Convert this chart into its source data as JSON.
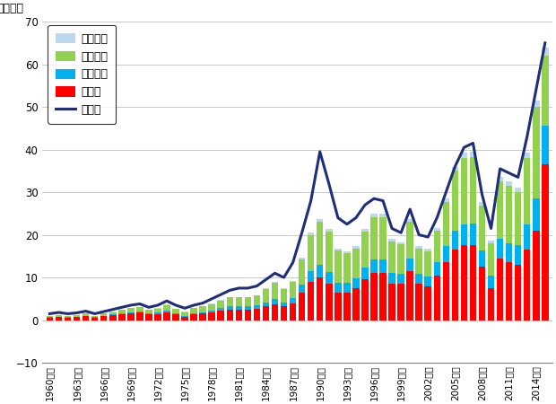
{
  "years": [
    1960,
    1961,
    1962,
    1963,
    1964,
    1965,
    1966,
    1967,
    1968,
    1969,
    1970,
    1971,
    1972,
    1973,
    1974,
    1975,
    1976,
    1977,
    1978,
    1979,
    1980,
    1981,
    1982,
    1983,
    1984,
    1985,
    1986,
    1987,
    1988,
    1989,
    1990,
    1991,
    1992,
    1993,
    1994,
    1995,
    1996,
    1997,
    1998,
    1999,
    2000,
    2001,
    2002,
    2003,
    2004,
    2005,
    2006,
    2007,
    2008,
    2009,
    2010,
    2011,
    2012,
    2013,
    2014,
    2015
  ],
  "daikigyou": [
    0.6,
    0.7,
    0.6,
    0.7,
    0.9,
    0.6,
    0.9,
    1.1,
    1.4,
    1.6,
    1.7,
    1.3,
    1.4,
    1.8,
    1.3,
    0.8,
    1.3,
    1.5,
    1.8,
    2.2,
    2.5,
    2.5,
    2.5,
    2.6,
    3.2,
    3.8,
    3.2,
    4.0,
    6.5,
    9.0,
    10.0,
    8.5,
    6.5,
    6.5,
    7.5,
    9.5,
    11.0,
    11.0,
    8.5,
    8.5,
    11.5,
    8.5,
    8.0,
    10.5,
    13.5,
    16.5,
    17.5,
    17.5,
    12.5,
    7.5,
    14.5,
    13.5,
    13.0,
    16.5,
    21.0,
    36.5
  ],
  "chuken": [
    0.1,
    0.1,
    0.1,
    0.1,
    0.15,
    0.1,
    0.15,
    0.2,
    0.25,
    0.3,
    0.35,
    0.25,
    0.3,
    0.4,
    0.3,
    0.25,
    0.35,
    0.4,
    0.5,
    0.6,
    0.7,
    0.7,
    0.7,
    0.8,
    1.0,
    1.2,
    1.0,
    1.2,
    1.8,
    2.5,
    3.0,
    2.8,
    2.3,
    2.2,
    2.3,
    2.8,
    3.2,
    3.2,
    2.5,
    2.3,
    3.0,
    2.3,
    2.2,
    3.0,
    3.8,
    4.5,
    5.0,
    5.2,
    3.8,
    3.0,
    4.5,
    4.5,
    4.5,
    6.0,
    7.5,
    9.0
  ],
  "chusho": [
    0.3,
    0.35,
    0.3,
    0.35,
    0.45,
    0.3,
    0.45,
    0.6,
    0.75,
    0.9,
    1.0,
    0.8,
    1.0,
    1.3,
    1.0,
    0.8,
    1.1,
    1.3,
    1.5,
    1.8,
    2.1,
    2.1,
    2.1,
    2.3,
    3.0,
    3.8,
    3.0,
    3.8,
    6.0,
    8.5,
    10.0,
    9.5,
    7.5,
    7.0,
    7.0,
    8.5,
    10.0,
    10.0,
    7.5,
    7.0,
    8.5,
    6.0,
    6.0,
    7.5,
    10.5,
    14.0,
    15.5,
    15.5,
    10.5,
    7.5,
    13.5,
    13.5,
    12.5,
    15.5,
    21.5,
    16.5
  ],
  "reisai": [
    0.05,
    0.05,
    0.05,
    0.05,
    0.05,
    0.05,
    0.05,
    0.05,
    0.05,
    0.1,
    0.1,
    0.1,
    0.1,
    0.1,
    0.1,
    0.1,
    0.1,
    0.1,
    0.15,
    0.15,
    0.15,
    0.15,
    0.15,
    0.15,
    0.2,
    0.25,
    0.2,
    0.25,
    0.4,
    0.5,
    0.6,
    0.6,
    0.5,
    0.5,
    0.5,
    0.6,
    0.7,
    0.7,
    0.6,
    0.5,
    0.6,
    0.5,
    0.5,
    0.6,
    0.7,
    1.0,
    1.2,
    1.2,
    0.9,
    0.75,
    1.0,
    1.0,
    1.0,
    1.2,
    1.5,
    2.0
  ],
  "zenkibo": [
    1.5,
    1.8,
    1.5,
    1.7,
    2.1,
    1.5,
    2.0,
    2.5,
    3.0,
    3.5,
    3.8,
    3.0,
    3.5,
    4.5,
    3.5,
    2.8,
    3.5,
    4.0,
    5.0,
    6.0,
    7.0,
    7.5,
    7.5,
    8.0,
    9.5,
    11.0,
    10.0,
    13.5,
    20.5,
    28.0,
    39.5,
    32.0,
    24.0,
    22.5,
    24.0,
    27.0,
    28.5,
    28.0,
    21.5,
    20.5,
    26.0,
    20.0,
    19.5,
    24.0,
    30.0,
    36.0,
    40.5,
    41.5,
    29.5,
    21.5,
    35.5,
    34.5,
    33.5,
    43.0,
    54.0,
    65.0
  ],
  "colors": {
    "reisai": "#bdd7ee",
    "chusho": "#92d050",
    "chuken": "#00b0f0",
    "daikigyou": "#ff0000",
    "zenkibo": "#1f2d7b"
  },
  "ylabel": "（兆円）",
  "ylim": [
    -10,
    70
  ],
  "yticks": [
    -10,
    0,
    10,
    20,
    30,
    40,
    50,
    60,
    70
  ],
  "legend_labels": [
    "零細企業",
    "中小企業",
    "中堅企業",
    "大企業",
    "全規模"
  ],
  "background_color": "#ffffff"
}
